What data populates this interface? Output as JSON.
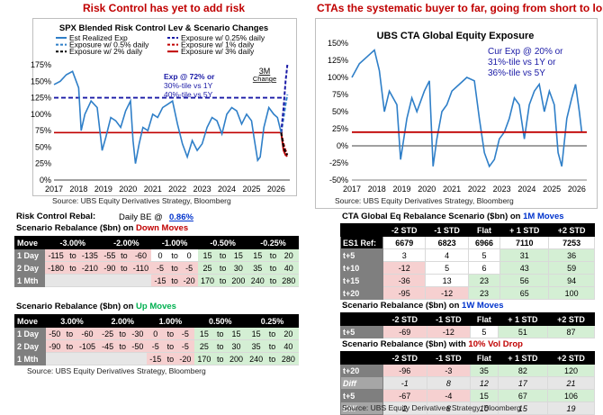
{
  "left_panel": {
    "heading": "Risk Control has yet to add risk",
    "chart_title": "SPX Blended Risk Control Lev  & Scenario Changes",
    "source": "Source: UBS Equity Derivatives Strategy, Bloomberg",
    "annotation_lines": [
      "Exp @ 72% or",
      "30%-tile vs 1Y",
      "40%-tile vs 5Y"
    ],
    "change_label_lines": [
      "3M",
      "Change"
    ]
  },
  "right_panel": {
    "heading": "CTAs the systematic buyer to far, going from short to long",
    "chart_title": "UBS CTA Global Equity Exposure",
    "source": "Source: UBS Equity Derivatives Strategy, Bloomberg",
    "annotation_lines": [
      "Cur Exp @ 20% or",
      "31%-tile vs 1Y or",
      "36%-tile vs 5Y"
    ]
  },
  "chart_data": [
    {
      "type": "line",
      "title": "SPX Blended Risk Control Lev  & Scenario Changes",
      "x_tick_labels": [
        "2017",
        "2018",
        "2019",
        "2020",
        "2021",
        "2022",
        "2023",
        "2024",
        "2025",
        "2026"
      ],
      "y_tick_labels": [
        "0%",
        "25%",
        "50%",
        "75%",
        "100%",
        "125%",
        "150%",
        "175%"
      ],
      "ylim": [
        0,
        175
      ],
      "legend": [
        {
          "name": "Est Realized Exp",
          "color": "#2f7fc8",
          "style": "solid"
        },
        {
          "name": "Exposure w/ 0.25% daily",
          "color": "#1a1aa6",
          "style": "dash"
        },
        {
          "name": "Exposure w/ 0.5% daily",
          "color": "#2f7fc8",
          "style": "dash"
        },
        {
          "name": "Exposure w/ 1% daily",
          "color": "#c00000",
          "style": "dash"
        },
        {
          "name": "Exposure w/ 2% daily",
          "color": "#000000",
          "style": "dash"
        },
        {
          "name": "Exposure w/ 3% daily",
          "color": "#c00000",
          "style": "solid"
        }
      ],
      "series": [
        {
          "name": "Est Realized Exp",
          "x": [
            2017.0,
            2017.25,
            2017.5,
            2017.75,
            2018.0,
            2018.1,
            2018.25,
            2018.5,
            2018.75,
            2018.95,
            2019.1,
            2019.3,
            2019.5,
            2019.7,
            2019.9,
            2020.1,
            2020.2,
            2020.3,
            2020.45,
            2020.6,
            2020.8,
            2021.0,
            2021.2,
            2021.4,
            2021.6,
            2021.8,
            2022.0,
            2022.2,
            2022.4,
            2022.6,
            2022.8,
            2023.0,
            2023.2,
            2023.4,
            2023.6,
            2023.8,
            2024.0,
            2024.2,
            2024.4,
            2024.6,
            2024.8,
            2025.0,
            2025.1,
            2025.25,
            2025.35,
            2025.5,
            2025.7,
            2025.9,
            2026.05,
            2026.2
          ],
          "values": [
            145,
            150,
            160,
            165,
            140,
            75,
            100,
            120,
            110,
            45,
            65,
            95,
            90,
            80,
            105,
            120,
            60,
            25,
            55,
            80,
            75,
            100,
            95,
            110,
            115,
            120,
            85,
            55,
            35,
            60,
            45,
            55,
            80,
            95,
            90,
            70,
            100,
            110,
            105,
            85,
            100,
            90,
            65,
            30,
            35,
            80,
            110,
            100,
            95,
            72
          ]
        },
        {
          "name": "Exposure w/ 0.25% daily",
          "x": [
            2026.2,
            2026.3,
            2026.38,
            2026.45
          ],
          "values": [
            72,
            110,
            150,
            175
          ]
        },
        {
          "name": "Exposure w/ 0.5% daily",
          "x": [
            2026.2,
            2026.3,
            2026.38,
            2026.45
          ],
          "values": [
            72,
            95,
            115,
            130
          ]
        },
        {
          "name": "Exposure w/ 1% daily",
          "x": [
            2026.2,
            2026.3,
            2026.38,
            2026.45
          ],
          "values": [
            72,
            55,
            45,
            40
          ]
        },
        {
          "name": "Exposure w/ 2% daily",
          "x": [
            2026.2,
            2026.3,
            2026.38,
            2026.45
          ],
          "values": [
            72,
            50,
            42,
            38
          ]
        },
        {
          "name": "Exposure w/ 3% daily",
          "x": [
            2026.2,
            2026.3,
            2026.38,
            2026.45
          ],
          "values": [
            72,
            45,
            38,
            36
          ]
        }
      ],
      "reference_lines": [
        {
          "value": 125,
          "color": "#1a1aa6",
          "style": "dash"
        },
        {
          "value": 72,
          "color": "#c00000",
          "style": "solid"
        }
      ]
    },
    {
      "type": "line",
      "title": "UBS CTA Global Equity Exposure",
      "x_tick_labels": [
        "2017",
        "2018",
        "2019",
        "2020",
        "2021",
        "2022",
        "2023",
        "2024",
        "2025",
        "2026"
      ],
      "y_tick_labels": [
        "-50%",
        "-25%",
        "0%",
        "25%",
        "50%",
        "75%",
        "100%",
        "125%",
        "150%"
      ],
      "ylim": [
        -50,
        150
      ],
      "series": [
        {
          "name": "UBS CTA Global Equity Exposure",
          "x": [
            2017.0,
            2017.3,
            2017.6,
            2017.9,
            2018.1,
            2018.3,
            2018.5,
            2018.8,
            2018.95,
            2019.2,
            2019.4,
            2019.6,
            2019.9,
            2020.1,
            2020.25,
            2020.4,
            2020.6,
            2020.8,
            2021.0,
            2021.3,
            2021.6,
            2021.9,
            2022.1,
            2022.3,
            2022.5,
            2022.7,
            2022.9,
            2023.1,
            2023.3,
            2023.5,
            2023.7,
            2023.9,
            2024.1,
            2024.3,
            2024.5,
            2024.7,
            2024.9,
            2025.1,
            2025.25,
            2025.4,
            2025.6,
            2025.8,
            2025.95,
            2026.1,
            2026.2
          ],
          "values": [
            100,
            120,
            130,
            140,
            110,
            50,
            80,
            60,
            -20,
            40,
            70,
            50,
            80,
            95,
            -30,
            10,
            50,
            60,
            80,
            90,
            100,
            95,
            40,
            -10,
            -30,
            -20,
            10,
            20,
            40,
            70,
            60,
            10,
            60,
            80,
            90,
            50,
            80,
            60,
            -10,
            -30,
            40,
            70,
            90,
            50,
            20
          ]
        }
      ],
      "reference_lines": [
        {
          "value": 20,
          "color": "#c00000",
          "style": "solid"
        }
      ]
    },
    {
      "type": "table",
      "title": "Scenario Rebalance ($bn) on Down Moves",
      "columns": [
        "Move",
        "-3.00%",
        "-2.00%",
        "-1.00%",
        "-0.50%",
        "-0.25%"
      ],
      "rows": [
        {
          "label": "1 Day",
          "cells": [
            [
              "-115",
              "to",
              "-135"
            ],
            [
              "-55",
              "to",
              "-60"
            ],
            [
              "0",
              "to",
              "0"
            ],
            [
              "15",
              "to",
              "15"
            ],
            [
              "15",
              "to",
              "20"
            ]
          ]
        },
        {
          "label": "2 Day",
          "cells": [
            [
              "-180",
              "to",
              "-210"
            ],
            [
              "-90",
              "to",
              "-110"
            ],
            [
              "-5",
              "to",
              "-5"
            ],
            [
              "25",
              "to",
              "30"
            ],
            [
              "35",
              "to",
              "40"
            ]
          ]
        },
        {
          "label": "1 Mth",
          "cells": [
            [
              "",
              "",
              ""
            ],
            [
              "",
              "",
              ""
            ],
            [
              "-15",
              "to",
              "-20"
            ],
            [
              "170",
              "to",
              "200"
            ],
            [
              "240",
              "to",
              "280"
            ]
          ]
        }
      ]
    },
    {
      "type": "table",
      "title": "Scenario Rebalance ($bn) on Up Moves",
      "columns": [
        "Move",
        "3.00%",
        "2.00%",
        "1.00%",
        "0.50%",
        "0.25%"
      ],
      "rows": [
        {
          "label": "1 Day",
          "cells": [
            [
              "-50",
              "to",
              "-60"
            ],
            [
              "-25",
              "to",
              "-30"
            ],
            [
              "0",
              "to",
              "-5"
            ],
            [
              "15",
              "to",
              "15"
            ],
            [
              "15",
              "to",
              "20"
            ]
          ]
        },
        {
          "label": "2 Day",
          "cells": [
            [
              "-90",
              "to",
              "-105"
            ],
            [
              "-45",
              "to",
              "-50"
            ],
            [
              "-5",
              "to",
              "-5"
            ],
            [
              "25",
              "to",
              "30"
            ],
            [
              "35",
              "to",
              "40"
            ]
          ]
        },
        {
          "label": "1 Mth",
          "cells": [
            [
              "",
              "",
              ""
            ],
            [
              "",
              "",
              ""
            ],
            [
              "-15",
              "to",
              "-20"
            ],
            [
              "170",
              "to",
              "200"
            ],
            [
              "240",
              "to",
              "280"
            ]
          ]
        }
      ]
    }
  ],
  "risk_control": {
    "title": "Risk Control Rebal:",
    "daily_be_label": "Daily BE @",
    "daily_be_value": "0.86%",
    "down_table_title_prefix": "Scenario Rebalance ($bn) on ",
    "down_table_title_suffix": "Down Moves",
    "up_table_title_prefix": "Scenario Rebalance ($bn) on ",
    "up_table_title_suffix": "Up Moves",
    "source": "Source: UBS Equity Derivatives Strategy, Bloomberg"
  },
  "cta_tables": {
    "main_title_prefix": "CTA Global Eq Rebalance Scenario ($bn) on ",
    "main_title_suffix": "1M Moves",
    "columns": [
      "-2 STD",
      "-1 STD",
      "Flat",
      "+ 1 STD",
      "+2 STD"
    ],
    "ref_row": {
      "label": "ES1 Ref:",
      "values": [
        "6679",
        "6823",
        "6966",
        "7110",
        "7253"
      ]
    },
    "rows": [
      {
        "label": "t+5",
        "values": [
          "3",
          "4",
          "5",
          "31",
          "36"
        ]
      },
      {
        "label": "t+10",
        "values": [
          "-12",
          "5",
          "6",
          "43",
          "59"
        ]
      },
      {
        "label": "t+15",
        "values": [
          "-36",
          "13",
          "23",
          "56",
          "94"
        ]
      },
      {
        "label": "t+20",
        "values": [
          "-95",
          "-12",
          "23",
          "65",
          "100"
        ]
      }
    ],
    "week_title_prefix": "Scenario Rebalance ($bn) on ",
    "week_title_suffix": "1W Moves",
    "week_row": {
      "label": "t+5",
      "values": [
        "-69",
        "-12",
        "5",
        "51",
        "87"
      ]
    },
    "vol_title_prefix": "Scenario Rebalance ($bn) with ",
    "vol_title_suffix": "10% Vol Drop",
    "vol_rows": [
      {
        "label": "t+20",
        "values": [
          "-96",
          "-3",
          "35",
          "82",
          "120"
        ],
        "italic": false
      },
      {
        "label": "Diff",
        "values": [
          "-1",
          "8",
          "12",
          "17",
          "21"
        ],
        "italic": true
      },
      {
        "label": "t+5",
        "values": [
          "-67",
          "-4",
          "15",
          "67",
          "106"
        ],
        "italic": false
      },
      {
        "label": "Diff",
        "values": [
          "2",
          "8",
          "10",
          "15",
          "19"
        ],
        "italic": true
      }
    ],
    "source": "Source: UBS Equity Derivatives Strategy, Bloomberg"
  }
}
